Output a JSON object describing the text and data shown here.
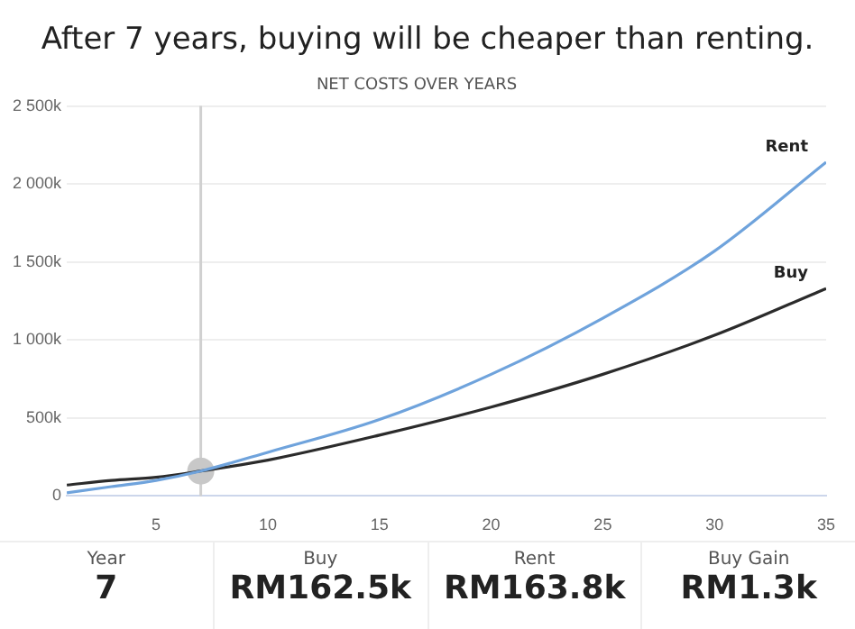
{
  "chart_data": {
    "type": "line",
    "title": "After 7 years, buying will be cheaper than renting.",
    "subtitle": "NET COSTS OVER YEARS",
    "series": [
      {
        "name": "Rent",
        "color": "#6fa3dc",
        "x": [
          1,
          3,
          5,
          7,
          10,
          15,
          20,
          25,
          30,
          35
        ],
        "values": [
          20,
          60,
          100,
          160,
          280,
          490,
          780,
          1140,
          1570,
          2140
        ]
      },
      {
        "name": "Buy",
        "color": "#2b2b2b",
        "x": [
          1,
          3,
          5,
          7,
          10,
          15,
          20,
          25,
          30,
          35
        ],
        "values": [
          70,
          100,
          120,
          160,
          230,
          390,
          570,
          780,
          1030,
          1330
        ]
      },
      {
        "type": "scatter",
        "color": "#c8c8c8",
        "x": [
          7
        ],
        "values": [
          160
        ]
      }
    ],
    "xlim": [
      1,
      35
    ],
    "xticks": [
      5,
      10,
      15,
      20,
      25,
      30,
      35
    ],
    "ylim": [
      0,
      2500
    ],
    "yticks": [
      0,
      {
        "value": 500,
        "label": "500k"
      },
      {
        "value": 1000,
        "label": "1 000k"
      },
      {
        "value": 1500,
        "label": "1 500k"
      },
      {
        "value": 2000,
        "label": "2 000k"
      },
      {
        "value": 2500,
        "label": "2 500k"
      }
    ],
    "grid": "y",
    "legend": false,
    "ref_lines": [
      {
        "axis": "x",
        "value": 7,
        "color": "#d0d0d0"
      }
    ],
    "annotations": [
      "Year",
      "7",
      "Buy",
      "RM162.5k",
      "Rent",
      "RM163.8k",
      "Buy Gain",
      "RM1.3k"
    ]
  }
}
